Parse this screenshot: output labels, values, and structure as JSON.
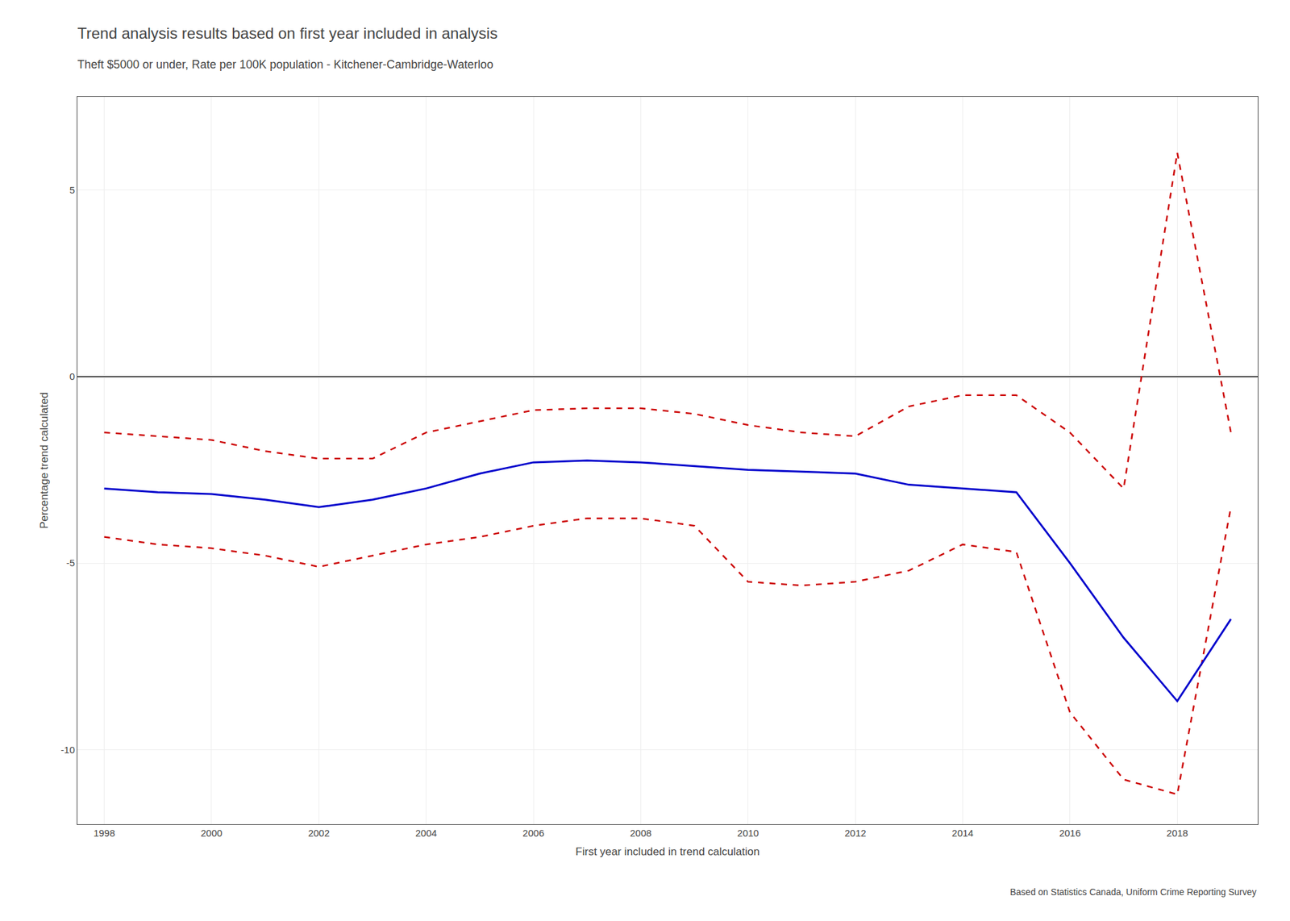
{
  "chart_data": {
    "type": "line",
    "title": "Trend analysis results based on first year included in analysis",
    "subtitle": "Theft $5000 or under, Rate per 100K population - Kitchener-Cambridge-Waterloo",
    "xlabel": "First year included in trend calculation",
    "ylabel": "Percentage trend calculated",
    "annotations": [
      "Based on Statistics Canada, Uniform Crime Reporting Survey"
    ],
    "x": [
      1998,
      1999,
      2000,
      2001,
      2002,
      2003,
      2004,
      2005,
      2006,
      2007,
      2008,
      2009,
      2010,
      2011,
      2012,
      2013,
      2014,
      2015,
      2016,
      2017,
      2018,
      2019
    ],
    "series": [
      {
        "color": "#cc0000",
        "line_style": "dashed",
        "values": [
          -1.5,
          -1.6,
          -1.7,
          -2.0,
          -2.2,
          -2.2,
          -1.5,
          -1.2,
          -0.9,
          -0.85,
          -0.85,
          -1.0,
          -1.3,
          -1.5,
          -1.6,
          -0.8,
          -0.5,
          -0.5,
          -1.5,
          -3.0,
          6.0,
          -1.5
        ]
      },
      {
        "color": "#cc0000",
        "line_style": "dashed",
        "values": [
          -4.3,
          -4.5,
          -4.6,
          -4.8,
          -5.1,
          -4.8,
          -4.5,
          -4.3,
          -4.0,
          -3.8,
          -3.8,
          -4.0,
          -5.5,
          -5.6,
          -5.5,
          -5.2,
          -4.5,
          -4.7,
          -9.0,
          -10.8,
          -11.2,
          -3.5
        ]
      },
      {
        "color": "#0000cc",
        "line_style": "solid",
        "values": [
          -3.0,
          -3.1,
          -3.15,
          -3.3,
          -3.5,
          -3.3,
          -3.0,
          -2.6,
          -2.3,
          -2.25,
          -2.3,
          -2.4,
          -2.5,
          -2.55,
          -2.6,
          -2.9,
          -3.0,
          -3.1,
          -5.0,
          -7.0,
          -8.7,
          -6.5
        ]
      }
    ],
    "xlim": [
      1997.5,
      2019.5
    ],
    "xticks": [
      1998,
      2000,
      2002,
      2004,
      2006,
      2008,
      2010,
      2012,
      2014,
      2016,
      2018
    ],
    "ylim": [
      -12,
      7.5
    ],
    "yticks": [
      -10,
      -5,
      0,
      5
    ],
    "grid": true
  }
}
